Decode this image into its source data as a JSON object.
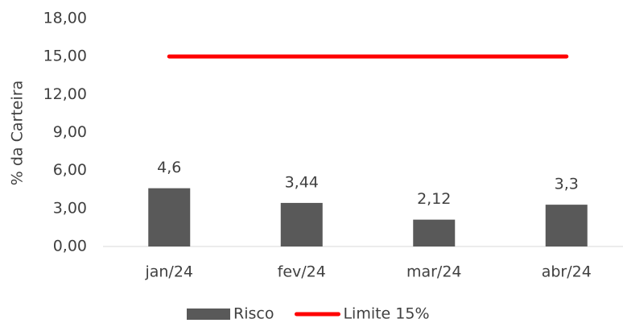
{
  "chart_data": {
    "type": "bar",
    "y_label": "% da Carteira",
    "categories": [
      "jan/24",
      "fev/24",
      "mar/24",
      "abr/24"
    ],
    "series": [
      {
        "name": "Risco",
        "type": "bar",
        "color": "#595959",
        "values": [
          4.6,
          3.44,
          2.12,
          3.3
        ],
        "value_labels": [
          "4,6",
          "3,44",
          "2,12",
          "3,3"
        ]
      },
      {
        "name": "Limite 15%",
        "type": "line",
        "color": "#ff0000",
        "values": [
          15,
          15,
          15,
          15
        ]
      }
    ],
    "ylim": [
      0,
      18
    ],
    "yticks": [
      {
        "value": 0,
        "label": "0,00"
      },
      {
        "value": 3,
        "label": "3,00"
      },
      {
        "value": 6,
        "label": "6,00"
      },
      {
        "value": 9,
        "label": "9,00"
      },
      {
        "value": 12,
        "label": "12,00"
      },
      {
        "value": 15,
        "label": "15,00"
      },
      {
        "value": 18,
        "label": "18,00"
      }
    ],
    "grid": false,
    "legend": "bottom"
  }
}
